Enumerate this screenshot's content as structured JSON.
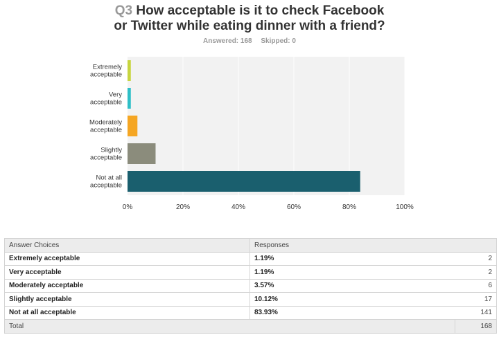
{
  "survey": {
    "question_number": "Q3",
    "question_text_line1": "How acceptable is it to check Facebook",
    "question_text_line2": "or Twitter while eating dinner with a friend?",
    "answered_label": "Answered: 168",
    "skipped_label": "Skipped: 0"
  },
  "chart_data": {
    "type": "bar",
    "orientation": "horizontal",
    "categories": [
      [
        "Extremely",
        "acceptable"
      ],
      [
        "Very",
        "acceptable"
      ],
      [
        "Moderately",
        "acceptable"
      ],
      [
        "Slightly",
        "acceptable"
      ],
      [
        "Not at all",
        "acceptable"
      ]
    ],
    "values": [
      1.19,
      1.19,
      3.57,
      10.12,
      83.93
    ],
    "colors": [
      "#c7d53f",
      "#2fbfc7",
      "#f5a623",
      "#8b8c7c",
      "#1a5f6e"
    ],
    "xlim": [
      0,
      100
    ],
    "xticks": [
      "0%",
      "20%",
      "40%",
      "60%",
      "80%",
      "100%"
    ],
    "grid": true,
    "plot_background": "#f2f2f2"
  },
  "table": {
    "headers": [
      "Answer Choices",
      "Responses"
    ],
    "rows": [
      {
        "label": "Extremely acceptable",
        "pct": "1.19%",
        "count": "2"
      },
      {
        "label": "Very acceptable",
        "pct": "1.19%",
        "count": "2"
      },
      {
        "label": "Moderately acceptable",
        "pct": "3.57%",
        "count": "6"
      },
      {
        "label": "Slightly acceptable",
        "pct": "10.12%",
        "count": "17"
      },
      {
        "label": "Not at all acceptable",
        "pct": "83.93%",
        "count": "141"
      }
    ],
    "total_label": "Total",
    "total_count": "168"
  }
}
